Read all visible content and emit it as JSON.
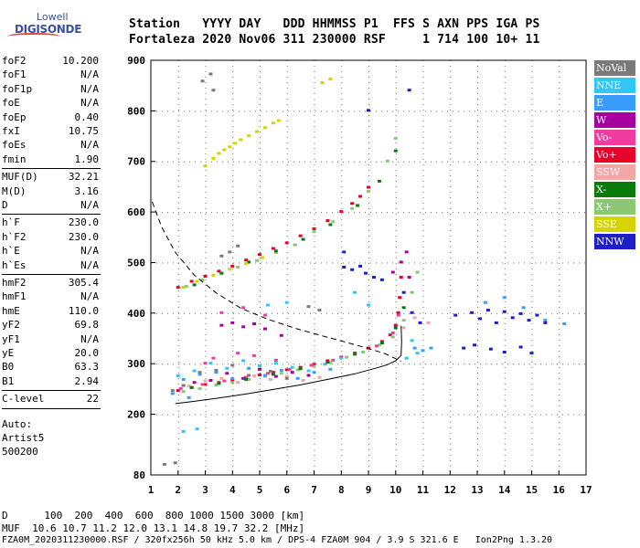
{
  "logo": {
    "line1": "Lowell",
    "line2": "DIGISONDE"
  },
  "header": {
    "row1": "Station   YYYY DAY   DDD HHMMSS P1  FFS S AXN PPS IGA PS",
    "row2": "Fortaleza 2020 Nov06 311 230000 RSF     1 714 100 10+ 11"
  },
  "params": {
    "group1": [
      {
        "k": "foF2",
        "v": "10.200"
      },
      {
        "k": "foF1",
        "v": "N/A"
      },
      {
        "k": "foF1p",
        "v": "N/A"
      },
      {
        "k": "foE",
        "v": "N/A"
      },
      {
        "k": "foEp",
        "v": "0.40"
      },
      {
        "k": "fxI",
        "v": "10.75"
      },
      {
        "k": "foEs",
        "v": "N/A"
      },
      {
        "k": "fmin",
        "v": "1.90"
      }
    ],
    "group2": [
      {
        "k": "MUF(D)",
        "v": "32.21"
      },
      {
        "k": "M(D)",
        "v": "3.16"
      },
      {
        "k": "D",
        "v": "N/A"
      }
    ],
    "group3": [
      {
        "k": "h`F",
        "v": "230.0"
      },
      {
        "k": "h`F2",
        "v": "230.0"
      },
      {
        "k": "h`E",
        "v": "N/A"
      },
      {
        "k": "h`Es",
        "v": "N/A"
      }
    ],
    "group4": [
      {
        "k": "hmF2",
        "v": "305.4"
      },
      {
        "k": "hmF1",
        "v": "N/A"
      },
      {
        "k": "hmE",
        "v": "110.0"
      },
      {
        "k": "yF2",
        "v": "69.8"
      },
      {
        "k": "yF1",
        "v": "N/A"
      },
      {
        "k": "yE",
        "v": "20.0"
      },
      {
        "k": "B0",
        "v": "63.3"
      },
      {
        "k": "B1",
        "v": "2.94"
      }
    ],
    "group5": [
      {
        "k": "C-level",
        "v": "22"
      }
    ],
    "auto": [
      "Auto:",
      "Artist5",
      "500200"
    ]
  },
  "legend": [
    {
      "label": "NoVal",
      "color": "#7a7a7a"
    },
    {
      "label": "NNE",
      "color": "#31c6f5"
    },
    {
      "label": "E",
      "color": "#3b9cff"
    },
    {
      "label": "W",
      "color": "#a6009e"
    },
    {
      "label": "Vo-",
      "color": "#f03ca0"
    },
    {
      "label": "Vo+",
      "color": "#e8002a"
    },
    {
      "label": "SSW",
      "color": "#f2a6a6"
    },
    {
      "label": "X-",
      "color": "#0a7a0a"
    },
    {
      "label": "X+",
      "color": "#8cc874"
    },
    {
      "label": "SSE",
      "color": "#d6d400"
    },
    {
      "label": "NNW",
      "color": "#1e1ec8"
    }
  ],
  "footer": {
    "line1": "D      100  200  400  600  800 1000 1500 3000 [km]",
    "line2": "MUF  10.6 10.7 11.2 12.0 13.1 14.8 19.7 32.2 [MHz]",
    "line3": "FZA0M_2020311230000.RSF / 320fx256h 50 kHz 5.0 km / DPS-4 FZA0M 904 / 3.9 S 321.6 E   Ion2Png 1.3.20"
  },
  "chart_data": {
    "type": "scatter",
    "xlim": [
      1,
      17
    ],
    "ylim": [
      80,
      900
    ],
    "xticks": [
      "1",
      "2",
      "3",
      "4",
      "5",
      "6",
      "7",
      "8",
      "9",
      "10",
      "11",
      "12",
      "13",
      "14",
      "15",
      "16",
      "17"
    ],
    "yticks": [
      "80",
      "200",
      "300",
      "400",
      "500",
      "600",
      "700",
      "800",
      "900"
    ],
    "grid": true,
    "series": [
      {
        "name": "Vo+",
        "points": [
          [
            2.0,
            246
          ],
          [
            2.5,
            252
          ],
          [
            3.0,
            258
          ],
          [
            3.5,
            262
          ],
          [
            4.0,
            266
          ],
          [
            4.5,
            272
          ],
          [
            5.0,
            277
          ],
          [
            5.5,
            282
          ],
          [
            6.0,
            287
          ],
          [
            6.5,
            292
          ],
          [
            7.0,
            298
          ],
          [
            7.5,
            305
          ],
          [
            8.0,
            312
          ],
          [
            8.5,
            320
          ],
          [
            9.0,
            330
          ],
          [
            9.5,
            343
          ],
          [
            9.8,
            356
          ],
          [
            10.0,
            375
          ],
          [
            10.1,
            400
          ],
          [
            10.15,
            430
          ],
          [
            10.2,
            470
          ],
          [
            2.0,
            450
          ],
          [
            2.5,
            462
          ],
          [
            3.0,
            472
          ],
          [
            3.5,
            482
          ],
          [
            4.0,
            492
          ],
          [
            4.5,
            504
          ],
          [
            5.0,
            515
          ],
          [
            5.5,
            527
          ],
          [
            6.0,
            538
          ],
          [
            6.5,
            552
          ],
          [
            7.0,
            566
          ],
          [
            7.5,
            582
          ],
          [
            8.0,
            600
          ],
          [
            8.4,
            616
          ],
          [
            8.7,
            630
          ],
          [
            9.0,
            648
          ]
        ]
      },
      {
        "name": "X+",
        "points": [
          [
            2.2,
            244
          ],
          [
            2.8,
            250
          ],
          [
            3.4,
            257
          ],
          [
            4.0,
            262
          ],
          [
            4.6,
            268
          ],
          [
            5.2,
            274
          ],
          [
            5.8,
            280
          ],
          [
            6.4,
            287
          ],
          [
            7.0,
            294
          ],
          [
            7.6,
            301
          ],
          [
            8.2,
            312
          ],
          [
            8.8,
            322
          ],
          [
            9.4,
            336
          ],
          [
            9.9,
            352
          ],
          [
            10.3,
            385
          ],
          [
            10.6,
            440
          ],
          [
            10.8,
            480
          ],
          [
            2.3,
            452
          ],
          [
            2.9,
            465
          ],
          [
            3.6,
            478
          ],
          [
            4.2,
            490
          ],
          [
            4.9,
            503
          ],
          [
            5.6,
            519
          ],
          [
            6.3,
            534
          ],
          [
            7.0,
            560
          ],
          [
            7.7,
            580
          ],
          [
            8.4,
            606
          ],
          [
            9.0,
            640
          ],
          [
            9.7,
            700
          ],
          [
            10.0,
            745
          ]
        ]
      },
      {
        "name": "Vo-",
        "points": [
          [
            2.1,
            250
          ],
          [
            2.9,
            258
          ],
          [
            3.7,
            265
          ],
          [
            4.5,
            272
          ],
          [
            5.3,
            280
          ],
          [
            6.1,
            288
          ],
          [
            6.9,
            296
          ],
          [
            7.7,
            306
          ],
          [
            8.5,
            318
          ],
          [
            9.3,
            334
          ],
          [
            9.9,
            360
          ],
          [
            10.1,
            395
          ],
          [
            3.0,
            300
          ],
          [
            3.3,
            310
          ],
          [
            4.2,
            320
          ],
          [
            4.8,
            315
          ],
          [
            5.6,
            306
          ],
          [
            3.6,
            400
          ],
          [
            4.4,
            410
          ],
          [
            5.2,
            395
          ]
        ]
      },
      {
        "name": "NNE",
        "points": [
          [
            2.0,
            275
          ],
          [
            2.6,
            285
          ],
          [
            3.2,
            300
          ],
          [
            3.8,
            290
          ],
          [
            4.4,
            305
          ],
          [
            5.0,
            295
          ],
          [
            5.6,
            300
          ],
          [
            6.2,
            292
          ],
          [
            6.8,
            285
          ],
          [
            7.4,
            298
          ],
          [
            8.0,
            310
          ],
          [
            10.6,
            345
          ],
          [
            10.8,
            320
          ],
          [
            10.4,
            310
          ],
          [
            2.2,
            165
          ],
          [
            2.7,
            170
          ],
          [
            5.3,
            415
          ],
          [
            6.0,
            420
          ],
          [
            8.5,
            440
          ],
          [
            9.0,
            415
          ]
        ]
      },
      {
        "name": "E",
        "points": [
          [
            2.2,
            268
          ],
          [
            2.8,
            278
          ],
          [
            3.4,
            282
          ],
          [
            4.0,
            270
          ],
          [
            4.6,
            290
          ],
          [
            5.2,
            276
          ],
          [
            5.8,
            286
          ],
          [
            6.4,
            270
          ],
          [
            7.0,
            282
          ],
          [
            7.6,
            288
          ],
          [
            1.8,
            240
          ],
          [
            2.4,
            232
          ],
          [
            10.7,
            330
          ],
          [
            11.0,
            325
          ],
          [
            11.3,
            330
          ],
          [
            13.3,
            420
          ],
          [
            14.0,
            430
          ],
          [
            14.7,
            410
          ],
          [
            15.5,
            385
          ],
          [
            16.2,
            378
          ]
        ]
      },
      {
        "name": "W",
        "points": [
          [
            2.6,
            262
          ],
          [
            3.2,
            266
          ],
          [
            3.8,
            280
          ],
          [
            4.4,
            270
          ],
          [
            5.0,
            288
          ],
          [
            5.6,
            274
          ],
          [
            6.2,
            282
          ],
          [
            6.8,
            276
          ],
          [
            3.6,
            375
          ],
          [
            4.0,
            380
          ],
          [
            4.4,
            372
          ],
          [
            4.8,
            378
          ],
          [
            5.2,
            368
          ],
          [
            5.8,
            355
          ],
          [
            10.2,
            500
          ],
          [
            10.4,
            520
          ],
          [
            9.9,
            480
          ],
          [
            10.5,
            470
          ]
        ]
      },
      {
        "name": "SSW",
        "points": [
          [
            2.4,
            255
          ],
          [
            3.0,
            265
          ],
          [
            3.6,
            270
          ],
          [
            4.2,
            262
          ],
          [
            4.8,
            275
          ],
          [
            5.4,
            268
          ],
          [
            6.0,
            274
          ],
          [
            6.6,
            266
          ],
          [
            7.2,
            272
          ],
          [
            10.3,
            370
          ],
          [
            10.7,
            390
          ],
          [
            11.2,
            380
          ]
        ]
      },
      {
        "name": "X-",
        "points": [
          [
            2.5,
            252
          ],
          [
            3.5,
            260
          ],
          [
            4.5,
            268
          ],
          [
            5.5,
            278
          ],
          [
            6.5,
            289
          ],
          [
            7.5,
            302
          ],
          [
            8.5,
            318
          ],
          [
            9.5,
            340
          ],
          [
            10.0,
            370
          ],
          [
            10.3,
            410
          ],
          [
            2.6,
            455
          ],
          [
            3.6,
            478
          ],
          [
            4.6,
            500
          ],
          [
            5.6,
            522
          ],
          [
            6.6,
            545
          ],
          [
            7.6,
            574
          ],
          [
            8.6,
            612
          ],
          [
            9.4,
            660
          ],
          [
            10.0,
            720
          ]
        ]
      },
      {
        "name": "SSE",
        "points": [
          [
            3.3,
            705
          ],
          [
            3.5,
            715
          ],
          [
            3.7,
            722
          ],
          [
            3.9,
            728
          ],
          [
            4.1,
            735
          ],
          [
            4.3,
            742
          ],
          [
            4.6,
            750
          ],
          [
            4.9,
            758
          ],
          [
            5.2,
            766
          ],
          [
            5.5,
            775
          ],
          [
            5.7,
            780
          ],
          [
            3.0,
            690
          ],
          [
            7.3,
            855
          ],
          [
            7.6,
            862
          ],
          [
            2.2,
            450
          ],
          [
            2.7,
            462
          ],
          [
            3.3,
            474
          ],
          [
            3.9,
            486
          ],
          [
            4.5,
            497
          ],
          [
            5.1,
            509
          ]
        ]
      },
      {
        "name": "NNW",
        "points": [
          [
            8.1,
            490
          ],
          [
            8.4,
            485
          ],
          [
            8.7,
            492
          ],
          [
            8.9,
            478
          ],
          [
            9.2,
            470
          ],
          [
            9.5,
            465
          ],
          [
            10.3,
            440
          ],
          [
            10.6,
            400
          ],
          [
            10.9,
            380
          ],
          [
            12.2,
            395
          ],
          [
            12.8,
            400
          ],
          [
            13.1,
            388
          ],
          [
            13.4,
            405
          ],
          [
            13.7,
            380
          ],
          [
            14.0,
            402
          ],
          [
            14.3,
            390
          ],
          [
            14.6,
            398
          ],
          [
            14.9,
            385
          ],
          [
            15.2,
            395
          ],
          [
            15.5,
            380
          ],
          [
            12.5,
            330
          ],
          [
            12.9,
            336
          ],
          [
            13.5,
            328
          ],
          [
            14.0,
            322
          ],
          [
            14.6,
            332
          ],
          [
            15.0,
            320
          ],
          [
            9.0,
            800
          ],
          [
            10.5,
            840
          ],
          [
            8.1,
            520
          ]
        ]
      },
      {
        "name": "NoVal",
        "points": [
          [
            1.8,
            246
          ],
          [
            2.2,
            256
          ],
          [
            2.8,
            282
          ],
          [
            3.4,
            286
          ],
          [
            4.0,
            296
          ],
          [
            4.6,
            276
          ],
          [
            5.4,
            284
          ],
          [
            6.0,
            270
          ],
          [
            3.6,
            512
          ],
          [
            3.9,
            520
          ],
          [
            4.2,
            532
          ],
          [
            6.8,
            412
          ],
          [
            7.2,
            405
          ],
          [
            1.5,
            100
          ],
          [
            1.9,
            103
          ],
          [
            2.9,
            858
          ],
          [
            3.2,
            872
          ],
          [
            3.3,
            840
          ]
        ]
      }
    ],
    "profile": [
      [
        1.9,
        221
      ],
      [
        2.5,
        225
      ],
      [
        3.5,
        232
      ],
      [
        4.5,
        240
      ],
      [
        5.5,
        249
      ],
      [
        6.5,
        258
      ],
      [
        7.5,
        269
      ],
      [
        8.5,
        280
      ],
      [
        9.2,
        290
      ],
      [
        9.7,
        298
      ],
      [
        10.0,
        306
      ],
      [
        10.2,
        316
      ],
      [
        10.22,
        345
      ],
      [
        10.2,
        375
      ]
    ],
    "muf_curve": [
      [
        1.05,
        620
      ],
      [
        1.4,
        570
      ],
      [
        1.9,
        520
      ],
      [
        2.6,
        475
      ],
      [
        3.4,
        440
      ],
      [
        4.3,
        410
      ],
      [
        5.3,
        388
      ],
      [
        6.3,
        370
      ],
      [
        7.3,
        355
      ],
      [
        8.2,
        342
      ],
      [
        9.0,
        330
      ],
      [
        9.6,
        320
      ],
      [
        10.0,
        310
      ],
      [
        10.2,
        305
      ]
    ]
  }
}
